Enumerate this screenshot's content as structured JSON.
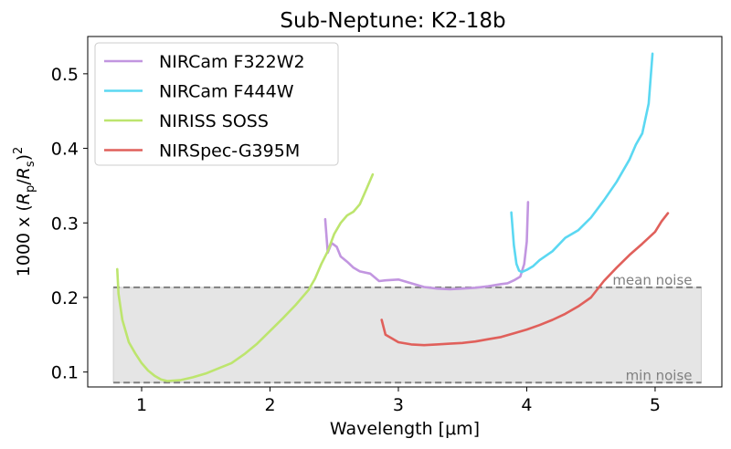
{
  "chart_data": {
    "type": "line",
    "title": "Sub-Neptune: K2-18b",
    "xlabel": "Wavelength [μm]",
    "ylabel": "1000 x (R_p/R_s)^2",
    "ylabel_parts": {
      "prefix": "1000 x (",
      "r1": "R",
      "sub1": "p",
      "slash": "/",
      "r2": "R",
      "sub2": "s",
      "close": ")",
      "sup": "2"
    },
    "xlim": [
      0.58,
      5.52
    ],
    "ylim": [
      0.08,
      0.55
    ],
    "xticks": [
      1,
      2,
      3,
      4,
      5
    ],
    "xtick_labels": [
      "1",
      "2",
      "3",
      "4",
      "5"
    ],
    "yticks": [
      0.1,
      0.2,
      0.3,
      0.4,
      0.5
    ],
    "ytick_labels": [
      "0.1",
      "0.2",
      "0.3",
      "0.4",
      "0.5"
    ],
    "grid": false,
    "legend_position": "top-left",
    "noise_band": {
      "x": [
        0.78,
        5.36
      ],
      "y": [
        0.0858,
        0.2135
      ],
      "color": "#e5e5e5"
    },
    "reference_lines": [
      {
        "label": "mean noise",
        "y": 0.2135,
        "color": "#808080",
        "style": "dashed"
      },
      {
        "label": "min noise",
        "y": 0.0858,
        "color": "#808080",
        "style": "dashed"
      }
    ],
    "series": [
      {
        "name": "NIRCam F322W2",
        "color": "#c296e0",
        "x": [
          2.43,
          2.45,
          2.48,
          2.52,
          2.55,
          2.6,
          2.65,
          2.7,
          2.78,
          2.85,
          2.9,
          3.0,
          3.1,
          3.2,
          3.3,
          3.4,
          3.5,
          3.6,
          3.7,
          3.8,
          3.85,
          3.9,
          3.95,
          3.98,
          4.0,
          4.01
        ],
        "y": [
          0.305,
          0.26,
          0.273,
          0.268,
          0.255,
          0.248,
          0.24,
          0.235,
          0.232,
          0.222,
          0.223,
          0.224,
          0.219,
          0.214,
          0.212,
          0.211,
          0.212,
          0.213,
          0.215,
          0.218,
          0.219,
          0.223,
          0.228,
          0.245,
          0.275,
          0.328
        ]
      },
      {
        "name": "NIRCam F444W",
        "color": "#5bd8f2",
        "x": [
          3.88,
          3.9,
          3.92,
          3.94,
          3.96,
          4.0,
          4.05,
          4.1,
          4.2,
          4.3,
          4.4,
          4.5,
          4.6,
          4.7,
          4.8,
          4.85,
          4.9,
          4.95,
          4.98
        ],
        "y": [
          0.314,
          0.27,
          0.245,
          0.236,
          0.234,
          0.237,
          0.242,
          0.25,
          0.262,
          0.28,
          0.29,
          0.307,
          0.33,
          0.355,
          0.385,
          0.405,
          0.42,
          0.46,
          0.527
        ]
      },
      {
        "name": "NIRISS SOSS",
        "color": "#bde56e",
        "x": [
          0.81,
          0.82,
          0.85,
          0.9,
          0.95,
          1.0,
          1.05,
          1.1,
          1.15,
          1.2,
          1.3,
          1.4,
          1.5,
          1.6,
          1.7,
          1.8,
          1.9,
          2.0,
          2.1,
          2.2,
          2.3,
          2.35,
          2.4,
          2.45,
          2.5,
          2.55,
          2.6,
          2.65,
          2.7,
          2.75,
          2.8
        ],
        "y": [
          0.238,
          0.205,
          0.17,
          0.14,
          0.125,
          0.112,
          0.102,
          0.095,
          0.09,
          0.088,
          0.089,
          0.093,
          0.098,
          0.105,
          0.112,
          0.124,
          0.138,
          0.155,
          0.172,
          0.19,
          0.21,
          0.225,
          0.245,
          0.262,
          0.285,
          0.3,
          0.31,
          0.315,
          0.325,
          0.345,
          0.365
        ]
      },
      {
        "name": "NIRSpec-G395M",
        "color": "#e0605b",
        "x": [
          2.87,
          2.9,
          2.95,
          3.0,
          3.1,
          3.2,
          3.3,
          3.4,
          3.5,
          3.6,
          3.7,
          3.8,
          3.9,
          4.0,
          4.1,
          4.2,
          4.3,
          4.4,
          4.5,
          4.6,
          4.7,
          4.8,
          4.9,
          5.0,
          5.05,
          5.1
        ],
        "y": [
          0.17,
          0.15,
          0.145,
          0.14,
          0.137,
          0.136,
          0.137,
          0.138,
          0.139,
          0.141,
          0.144,
          0.147,
          0.152,
          0.157,
          0.163,
          0.17,
          0.178,
          0.188,
          0.2,
          0.222,
          0.24,
          0.257,
          0.272,
          0.288,
          0.302,
          0.313
        ]
      }
    ]
  }
}
